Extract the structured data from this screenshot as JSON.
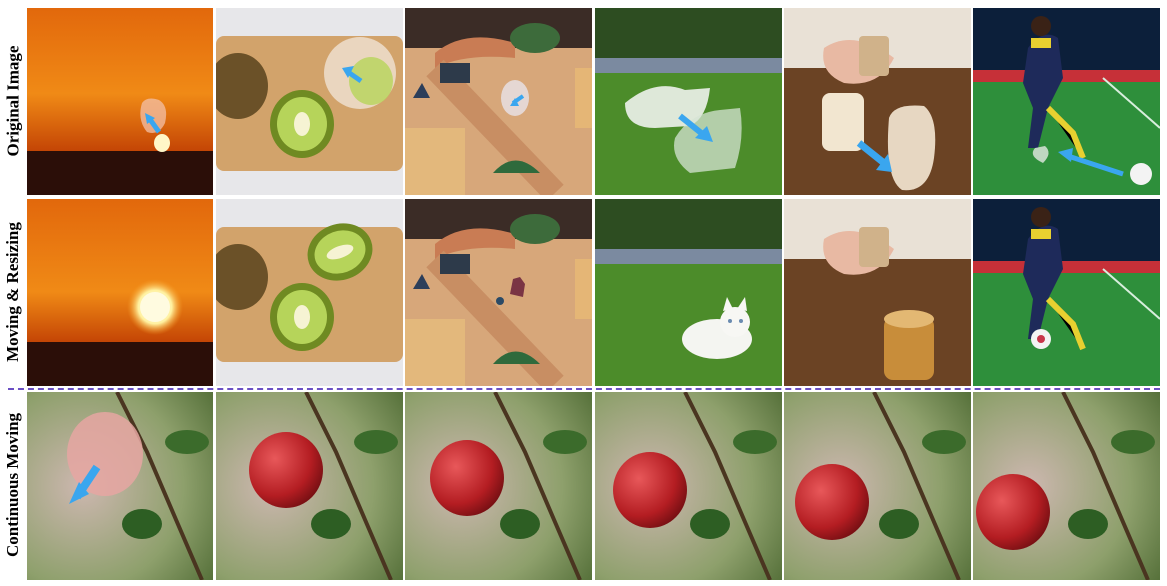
{
  "row_labels": {
    "original": "Original Image",
    "moving": "Moving & Resizing",
    "continuous": "Continuous Moving"
  },
  "colors": {
    "arrow": "#3aa6ef",
    "divider": "#6b4fc4"
  },
  "scenes_row1_row2": [
    "sunset",
    "kiwi",
    "toy-train",
    "kitten",
    "coffee-cup",
    "soccer-player"
  ],
  "scenes_row3": [
    "apple",
    "apple",
    "apple",
    "apple",
    "apple",
    "apple"
  ]
}
